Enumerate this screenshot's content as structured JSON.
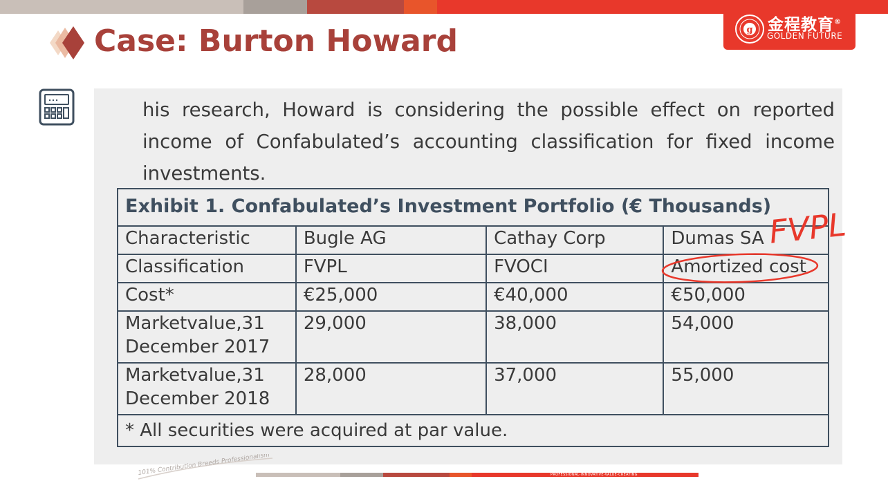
{
  "header": {
    "title": "Case: Burton Howard"
  },
  "logo": {
    "chinese": "金程教育",
    "english": "GOLDEN FUTURE",
    "registered": "®"
  },
  "content": {
    "paragraph_lines": [
      "his research, Howard is considering the possible effect on reported",
      "income of Confabulated’s accounting classification for fixed income",
      "investments."
    ]
  },
  "exhibit": {
    "title": "Exhibit 1. Confabulated’s Investment Portfolio (€ Thousands)",
    "columns": [
      "Characteristic",
      "Bugle AG",
      "Cathay Corp",
      "Dumas SA"
    ],
    "rows": [
      {
        "label": "Classification",
        "values": [
          "FVPL",
          "FVOCI",
          "Amortized cost"
        ]
      },
      {
        "label": "Cost*",
        "values": [
          "€25,000",
          "€40,000",
          "€50,000"
        ]
      },
      {
        "label_line1_a": "Market",
        "label_line1_b": "value,",
        "label_line1_c": "31",
        "label_line2": "December 2017",
        "values": [
          "29,000",
          "38,000",
          "54,000"
        ]
      },
      {
        "label_line1_a": "Market",
        "label_line1_b": "value,",
        "label_line1_c": "31",
        "label_line2": "December 2018",
        "values": [
          "28,000",
          "37,000",
          "55,000"
        ]
      }
    ],
    "footnote": "* All securities were acquired at par value."
  },
  "annotation": {
    "handwritten": "FVPL"
  },
  "footer": {
    "slogan": "101% Contribution Breeds Professionalism",
    "tagline": "PROFESSIONAL-INNOVATIVE-VALUE-CREATING"
  },
  "colors": {
    "title": "#a8413a",
    "accent_red": "#e8382b",
    "table_border": "#3f4f5f",
    "panel_bg": "#eeeeee"
  }
}
